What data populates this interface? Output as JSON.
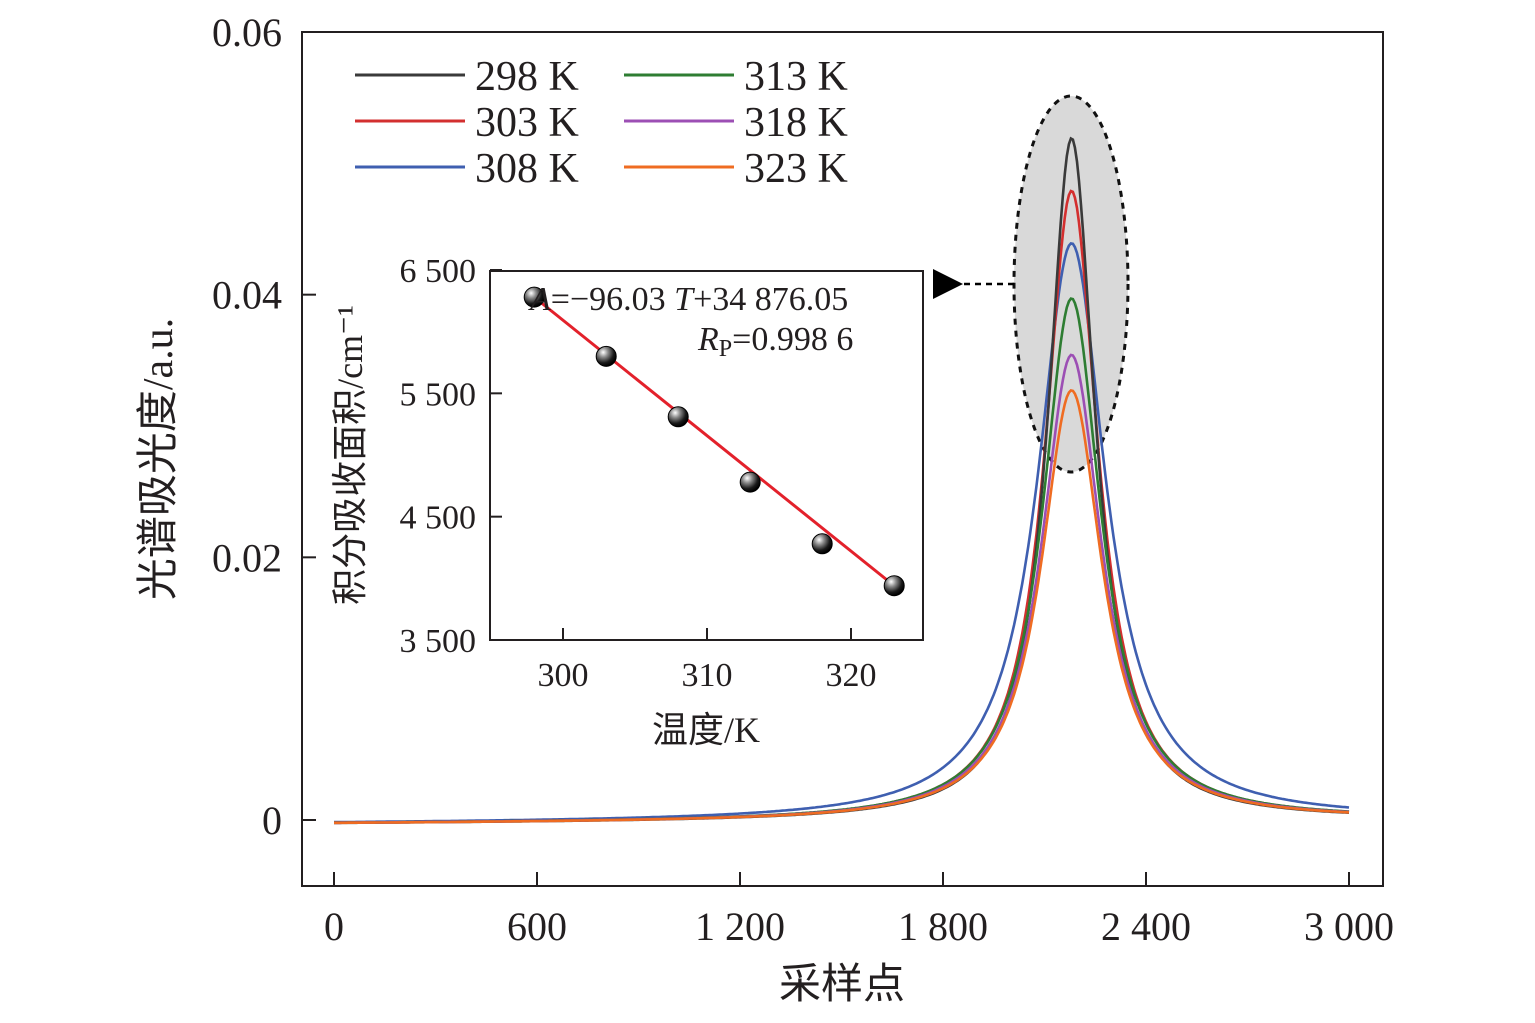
{
  "chart_data": [
    {
      "type": "line",
      "xlabel": "采样点",
      "ylabel": "光谱吸光度/a.u.",
      "xlim": [
        -100,
        3100
      ],
      "ylim": [
        -0.005,
        0.06
      ],
      "x_ticks": [
        0,
        600,
        1200,
        1800,
        2400,
        3000
      ],
      "x_tick_labels": [
        "0",
        "600",
        "1 200",
        "1 800",
        "2 400",
        "3 000"
      ],
      "y_ticks": [
        0,
        0.02,
        0.04,
        0.06
      ],
      "y_tick_labels": [
        "0",
        "0.02",
        "0.04",
        "0.06"
      ],
      "grid": false,
      "legend_placement": "top-left",
      "peak_position": 2180,
      "series": [
        {
          "name": "298 K",
          "color": "#3a3a3a",
          "peak": 0.052,
          "hwhm": 85
        },
        {
          "name": "303 K",
          "color": "#d32f2f",
          "peak": 0.048,
          "hwhm": 95
        },
        {
          "name": "308 K",
          "color": "#3f5fb0",
          "peak": 0.044,
          "hwhm": 122
        },
        {
          "name": "313 K",
          "color": "#2e7d32",
          "peak": 0.0398,
          "hwhm": 105
        },
        {
          "name": "318 K",
          "color": "#9c4fb4",
          "peak": 0.0355,
          "hwhm": 108
        },
        {
          "name": "323 K",
          "color": "#ef6c22",
          "peak": 0.0328,
          "hwhm": 110
        }
      ],
      "annotation": "highlighted peak region linked to inset"
    },
    {
      "type": "scatter",
      "xlabel": "温度/K",
      "ylabel": "积分吸收面积/cm⁻¹",
      "xlim": [
        295,
        325
      ],
      "ylim": [
        3500,
        6650
      ],
      "x_ticks": [
        300,
        310,
        320
      ],
      "x_tick_labels": [
        "300",
        "310",
        "320"
      ],
      "y_ticks": [
        3500,
        4500,
        5500,
        6500
      ],
      "y_tick_labels": [
        "3 500",
        "4 500",
        "5 500",
        "6 500"
      ],
      "points": [
        {
          "x": 298,
          "y": 6280
        },
        {
          "x": 303,
          "y": 5800
        },
        {
          "x": 308,
          "y": 5310
        },
        {
          "x": 313,
          "y": 4780
        },
        {
          "x": 318,
          "y": 4280
        },
        {
          "x": 323,
          "y": 3940
        }
      ],
      "fit": {
        "slope": -96.03,
        "intercept": 34876.05,
        "color": "#e3212b"
      },
      "equation_parts": {
        "a": "A",
        "b": "=−96.03 ",
        "c": "T",
        "d": "+34 876.05"
      },
      "r_parts": {
        "a": "R",
        "b": "P",
        "c": "=0.998 6"
      }
    }
  ]
}
